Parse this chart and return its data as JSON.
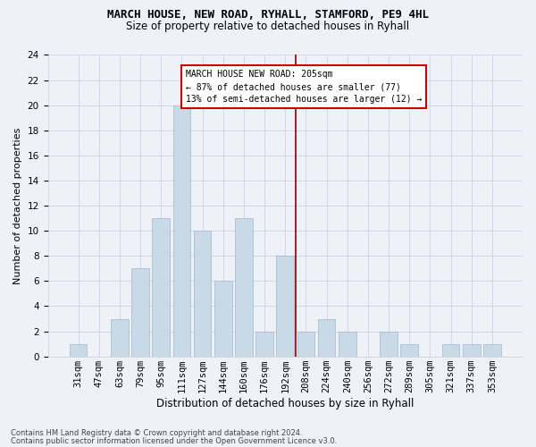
{
  "title": "MARCH HOUSE, NEW ROAD, RYHALL, STAMFORD, PE9 4HL",
  "subtitle": "Size of property relative to detached houses in Ryhall",
  "xlabel": "Distribution of detached houses by size in Ryhall",
  "ylabel": "Number of detached properties",
  "footer1": "Contains HM Land Registry data © Crown copyright and database right 2024.",
  "footer2": "Contains public sector information licensed under the Open Government Licence v3.0.",
  "categories": [
    "31sqm",
    "47sqm",
    "63sqm",
    "79sqm",
    "95sqm",
    "111sqm",
    "127sqm",
    "144sqm",
    "160sqm",
    "176sqm",
    "192sqm",
    "208sqm",
    "224sqm",
    "240sqm",
    "256sqm",
    "272sqm",
    "289sqm",
    "305sqm",
    "321sqm",
    "337sqm",
    "353sqm"
  ],
  "values": [
    1,
    0,
    3,
    7,
    11,
    20,
    10,
    6,
    11,
    2,
    8,
    2,
    3,
    2,
    0,
    2,
    1,
    0,
    1,
    1,
    1
  ],
  "bar_color": "#c9d9e8",
  "bar_edge_color": "#a0b8cc",
  "grid_color": "#d0d8e8",
  "background_color": "#eef2f8",
  "vline_color": "#8b0000",
  "annotation_line1": "MARCH HOUSE NEW ROAD: 205sqm",
  "annotation_line2": "← 87% of detached houses are smaller (77)",
  "annotation_line3": "13% of semi-detached houses are larger (12) →",
  "annotation_box_color": "#ffffff",
  "annotation_box_edge": "#cc0000",
  "ylim_max": 24,
  "ytick_step": 2,
  "property_bin_index": 11,
  "title_fontsize": 9,
  "subtitle_fontsize": 8.5,
  "ylabel_fontsize": 8,
  "xlabel_fontsize": 8.5,
  "tick_fontsize": 7.5,
  "annot_fontsize": 7,
  "footer_fontsize": 6
}
